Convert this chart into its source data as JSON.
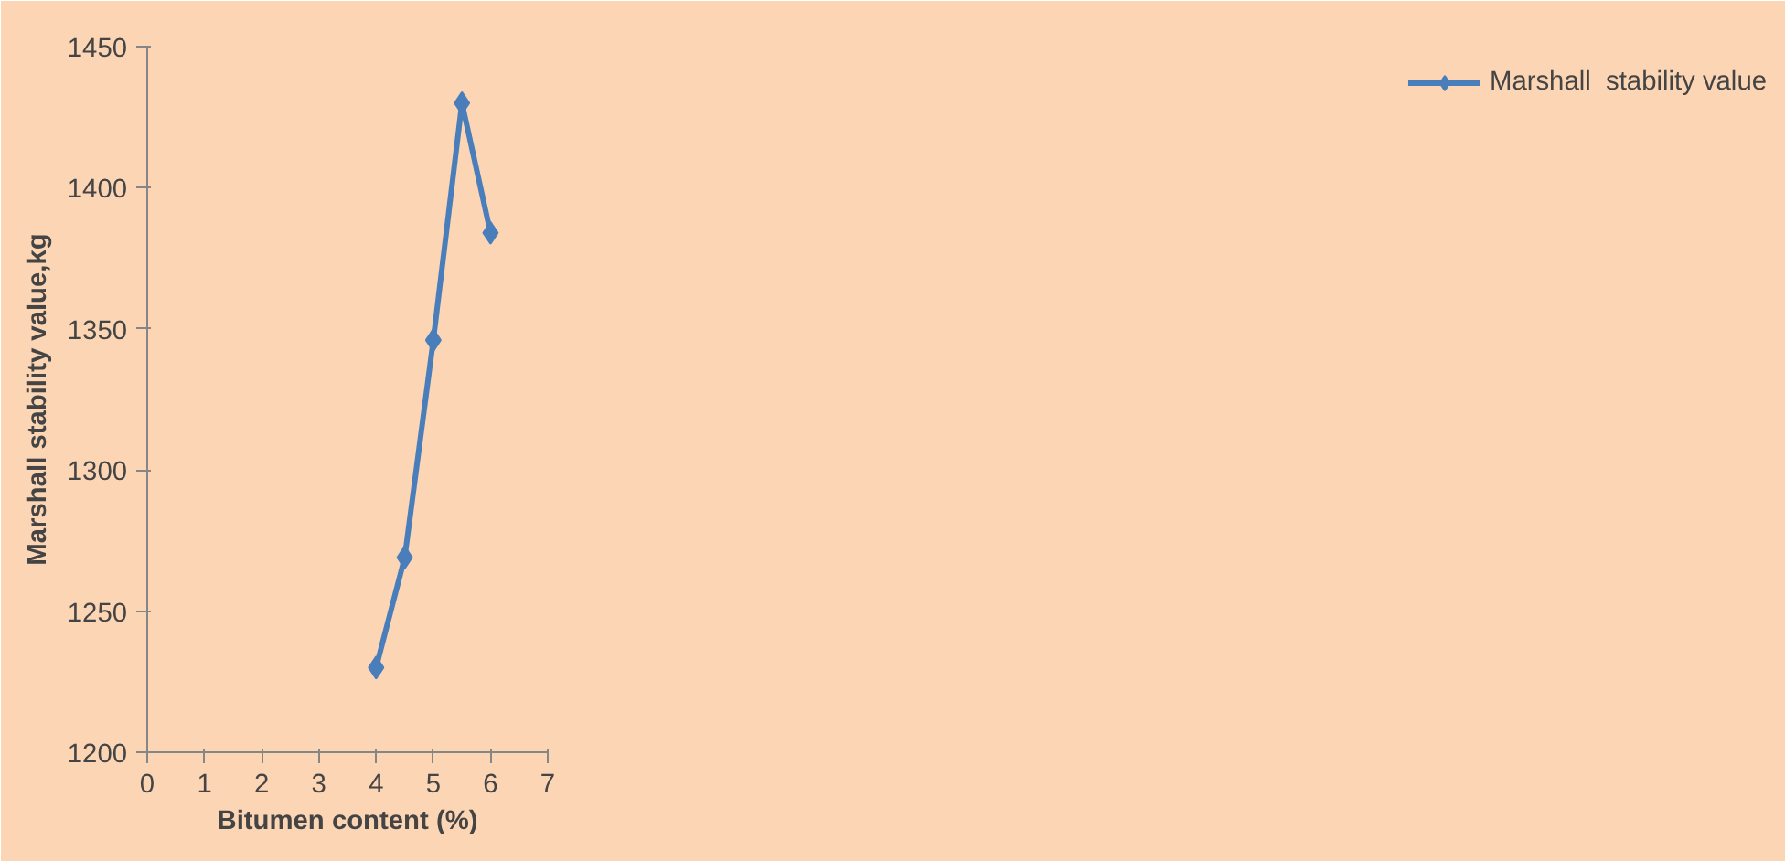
{
  "chart_data": {
    "type": "line",
    "xlabel": "Bitumen content (%)",
    "ylabel": "Marshall stability value,kg",
    "x": [
      4,
      4.5,
      5,
      5.5,
      6
    ],
    "series": [
      {
        "name": "Marshall  stability value",
        "color": "#4a7ebb",
        "values": [
          1230,
          1269,
          1346,
          1430,
          1384
        ]
      }
    ],
    "xlim": [
      0,
      7
    ],
    "xticks": [
      0,
      1,
      2,
      3,
      4,
      5,
      6,
      7
    ],
    "ylim": [
      1200,
      1450
    ],
    "yticks": [
      1200,
      1250,
      1300,
      1350,
      1400,
      1450
    ],
    "grid": false,
    "legend": "right",
    "marker": "diamond",
    "line_style": "solid"
  }
}
